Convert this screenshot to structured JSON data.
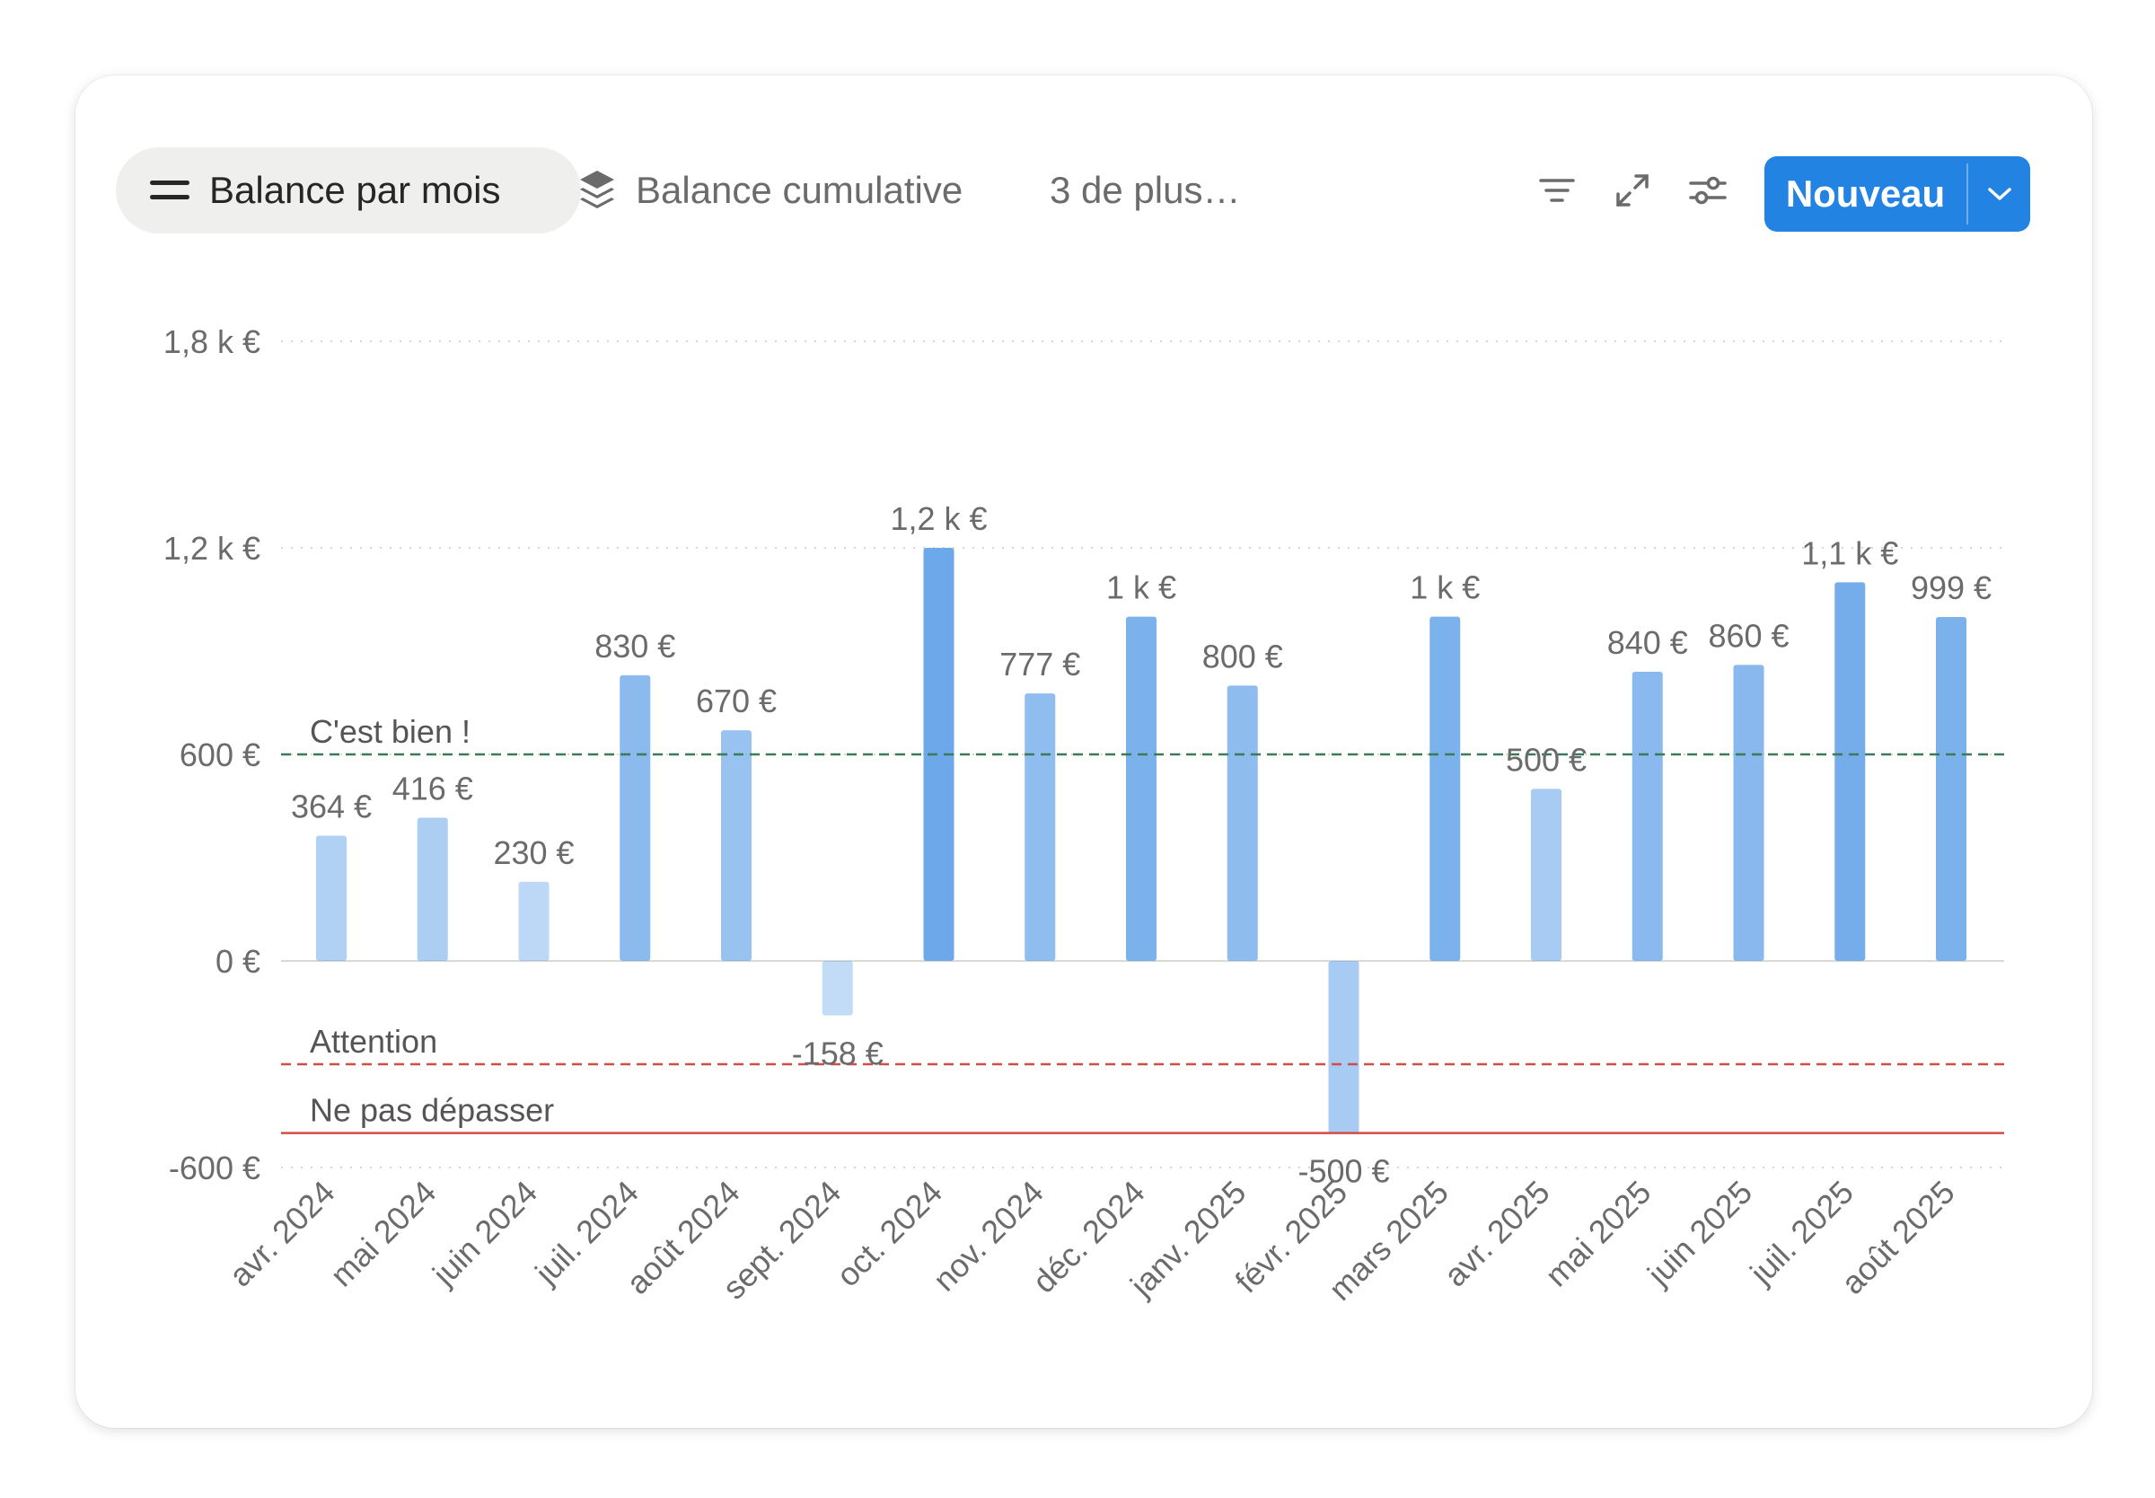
{
  "toolbar": {
    "tabs": [
      {
        "label": "Balance par mois",
        "icon": "list-icon",
        "active": true
      },
      {
        "label": "Balance cumulative",
        "icon": "layers-icon",
        "active": false
      }
    ],
    "more_label": "3 de plus…",
    "icons": [
      "filter-icon",
      "expand-icon",
      "sliders-icon",
      "chevron-down-icon"
    ],
    "new_button_label": "Nouveau",
    "accent": "#2383e2"
  },
  "chart_data": {
    "type": "bar",
    "categories": [
      "avr. 2024",
      "mai 2024",
      "juin 2024",
      "juil. 2024",
      "août 2024",
      "sept. 2024",
      "oct. 2024",
      "nov. 2024",
      "déc. 2024",
      "janv. 2025",
      "févr. 2025",
      "mars 2025",
      "avr. 2025",
      "mai 2025",
      "juin 2025",
      "juil. 2025",
      "août 2025"
    ],
    "values": [
      364,
      416,
      230,
      830,
      670,
      -158,
      1200,
      777,
      1000,
      800,
      -500,
      1000,
      500,
      840,
      860,
      1100,
      999
    ],
    "value_labels": [
      "364 €",
      "416 €",
      "230 €",
      "830 €",
      "670 €",
      "-158 €",
      "1,2 k €",
      "777 €",
      "1 k €",
      "800 €",
      "-500 €",
      "1 k €",
      "500 €",
      "840 €",
      "860 €",
      "1,1 k €",
      "999 €"
    ],
    "ylim": [
      -600,
      1800
    ],
    "yticks": [
      {
        "value": 1800,
        "label": "1,8 k €"
      },
      {
        "value": 1200,
        "label": "1,2 k €"
      },
      {
        "value": 600,
        "label": "600 €"
      },
      {
        "value": 0,
        "label": "0 €"
      },
      {
        "value": -600,
        "label": "-600 €"
      }
    ],
    "reference_lines": [
      {
        "value": 600,
        "label": "C'est bien !",
        "color": "#3d7a5b",
        "style": "dashed"
      },
      {
        "value": -300,
        "label": "Attention",
        "color": "#d44c47",
        "style": "dashed"
      },
      {
        "value": -500,
        "label": "Ne pas dépasser",
        "color": "#d44c47",
        "style": "solid"
      }
    ],
    "bar_color": "#6ca8ea",
    "grid": true,
    "legend": "none"
  }
}
